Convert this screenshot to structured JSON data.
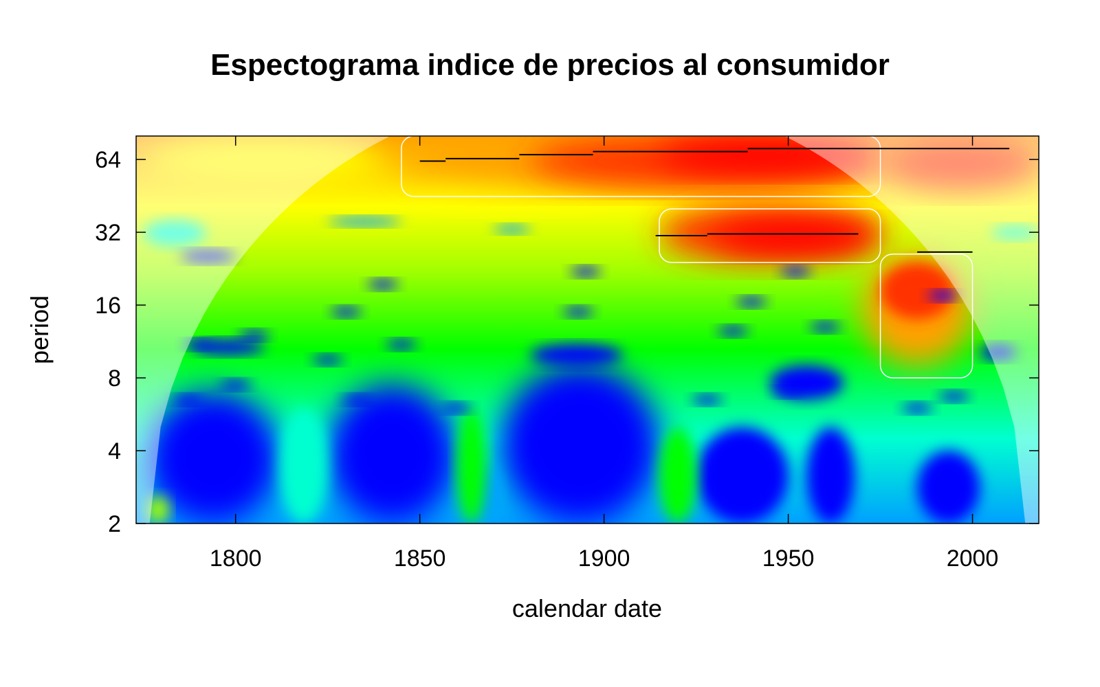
{
  "chart_data": {
    "type": "heatmap",
    "title": "Espectograma indice de precios al consumidor",
    "xlabel": "calendar date",
    "ylabel": "period",
    "xlim": [
      1773,
      2018
    ],
    "ylim": [
      2,
      80
    ],
    "y_scale": "log2",
    "x_ticks": [
      1800,
      1850,
      1900,
      1950,
      2000
    ],
    "y_ticks": [
      2,
      4,
      8,
      16,
      32,
      64
    ],
    "x_tick_labels": [
      "1800",
      "1850",
      "1900",
      "1950",
      "2000"
    ],
    "y_tick_labels": [
      "2",
      "4",
      "8",
      "16",
      "32",
      "64"
    ],
    "colormap": [
      "#0000ff",
      "#00a0ff",
      "#00ffd0",
      "#00ff00",
      "#a0ff00",
      "#ffff00",
      "#ffa000",
      "#ff3000",
      "#ff0000"
    ],
    "high_power_regions": [
      {
        "x": [
          1845,
          1975
        ],
        "period": [
          45,
          80
        ]
      },
      {
        "x": [
          1915,
          1975
        ],
        "period": [
          24,
          40
        ]
      },
      {
        "x": [
          1975,
          2000
        ],
        "period": [
          8,
          26
        ]
      }
    ],
    "ridge_lines": [
      {
        "x": [
          1850,
          1857
        ],
        "period": 63
      },
      {
        "x": [
          1857,
          1877
        ],
        "period": 64.5
      },
      {
        "x": [
          1877,
          1897
        ],
        "period": 67
      },
      {
        "x": [
          1897,
          1939
        ],
        "period": 69
      },
      {
        "x": [
          1939,
          1967
        ],
        "period": 71
      },
      {
        "x": [
          1967,
          2010
        ],
        "period": 71
      },
      {
        "x": [
          1914,
          1928
        ],
        "period": 31
      },
      {
        "x": [
          1928,
          1969
        ],
        "period": 31.5
      },
      {
        "x": [
          1985,
          2000
        ],
        "period": 26.5
      }
    ]
  }
}
